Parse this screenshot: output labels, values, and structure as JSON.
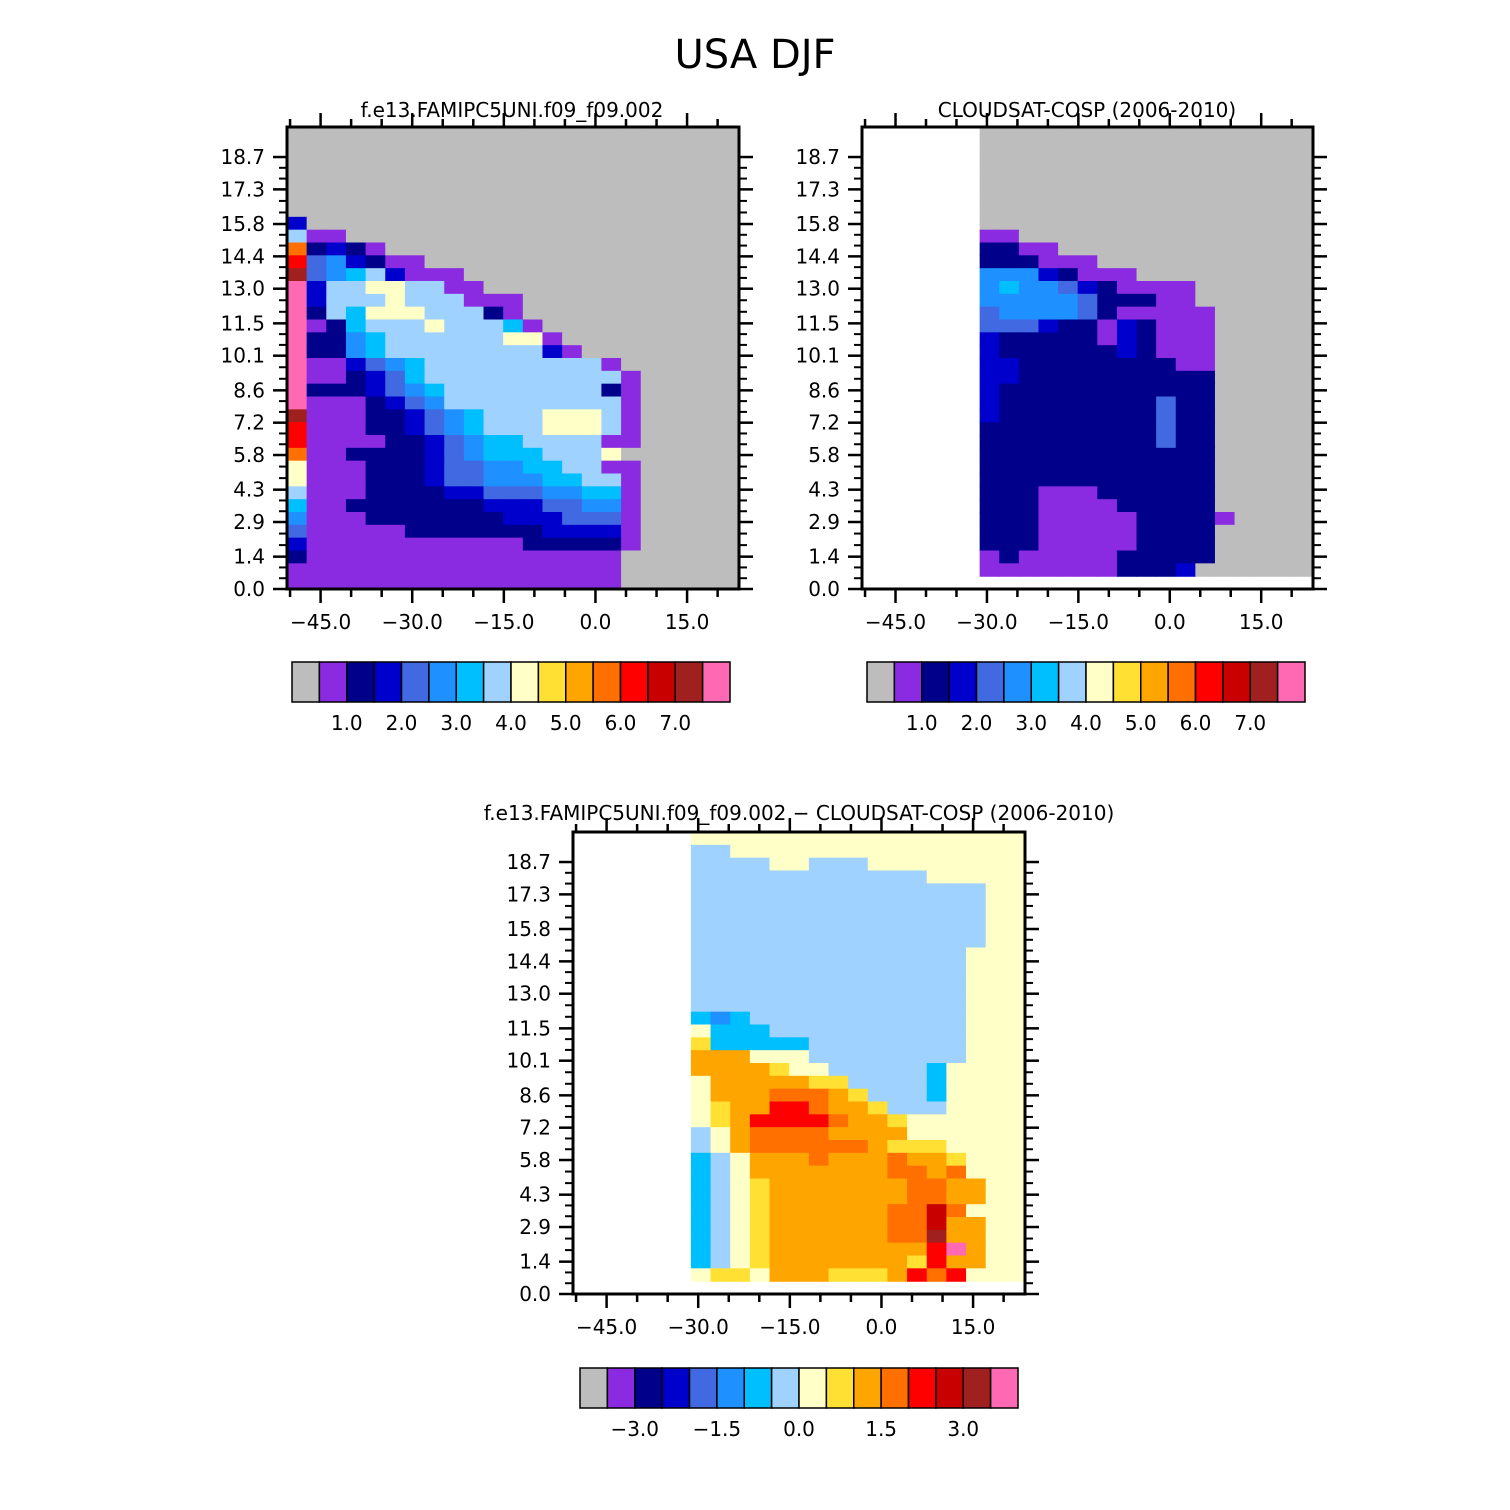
{
  "figure": {
    "title": "USA DJF"
  },
  "y_tick_labels": [
    "0.0",
    "1.4",
    "2.9",
    "4.3",
    "5.8",
    "7.2",
    "8.6",
    "10.1",
    "11.5",
    "13.0",
    "14.4",
    "15.8",
    "17.3",
    "18.7"
  ],
  "x_tick_labels": [
    "−45.0",
    "−30.0",
    "−15.0",
    "0.0",
    "15.0"
  ],
  "colors": {
    "missing": "#bdbdbd",
    "palette": [
      "#bdbdbd",
      "#8a2be2",
      "#00008b",
      "#0000cd",
      "#4169e1",
      "#1e90ff",
      "#00bfff",
      "#a0d2ff",
      "#ffffc8",
      "#ffe033",
      "#ffa500",
      "#ff7000",
      "#ff0000",
      "#c80000",
      "#a02020",
      "#ff69b4"
    ]
  },
  "chart_data": [
    {
      "type": "heatmap",
      "title": "f.e13.FAMIPC5UNI.f09_f09.002",
      "x_ticks": [
        -45,
        -30,
        -15,
        0,
        15
      ],
      "y_ticks": [
        0.0,
        1.4,
        2.9,
        4.3,
        5.8,
        7.2,
        8.6,
        10.1,
        11.5,
        13.0,
        14.4,
        15.8,
        17.3,
        18.7
      ],
      "colorbar_labels": [
        "1.0",
        "2.0",
        "3.0",
        "4.0",
        "5.0",
        "6.0",
        "7.0"
      ],
      "grid_rows": [
        "00000000000000000000000",
        "00000000000000000000000",
        "00000000000000000000000",
        "00000000000000000000000",
        "00000000000000000000000",
        "00000000000000000000000",
        "00000000000000000000000",
        "30000000000000000000000",
        "71100000000000000000000",
        "B23210000000000000000000",
        "C45321100000000000000000",
        "E45673111000000000000000",
        "F37788771100000000000000",
        "F37778777111000000000000",
        "F27688877721000000000000",
        "F12677787776100000000000",
        "F22567777778810000000000",
        "F22567777777731000000000",
        "F11345677777777710000000",
        "F11234677777777771000000",
        "F22234567777777721000000",
        "F11123457777777771000000",
        "E11122345677788871000000",
        "C11122345677788871000000",
        "C11112234566777711000000",
        "B11222234566677780000000",
        "811122234455667711000000",
        "811122234455566771000000",
        "711122223344455661000000",
        "611222222233344551000000",
        "511122222223334441000000",
        "411111222222233331000000",
        "311111111111222221000000",
        "211111111111111110000000",
        "111111111111111110000000",
        "111111111111111110000000"
      ]
    },
    {
      "type": "heatmap",
      "title": "CLOUDSAT-COSP (2006-2010)",
      "x_ticks": [
        -45,
        -30,
        -15,
        0,
        15
      ],
      "y_ticks": [
        0.0,
        1.4,
        2.9,
        4.3,
        5.8,
        7.2,
        8.6,
        10.1,
        11.5,
        13.0,
        14.4,
        15.8,
        17.3,
        18.7
      ],
      "colorbar_labels": [
        "1.0",
        "2.0",
        "3.0",
        "4.0",
        "5.0",
        "6.0",
        "7.0"
      ],
      "grid_rows": [
        "XXXXXX00000000000000000",
        "XXXXXX00000000000000000",
        "XXXXXX00000000000000000",
        "XXXXXX00000000000000000",
        "XXXXXX00000000000000000",
        "XXXXXX00000000000000000",
        "XXXXXX00000000000000000",
        "XXXXXX00000000000000000",
        "XXXXXX11000000000000000",
        "XXXXXX22110000000000000",
        "XXXXXX22211100000000000",
        "XXXXXX55532111000000000",
        "XXXXXX56554321111000000",
        "XXXXXX55555422211000000",
        "XXXXXX45555421111100000",
        "XXXXXX44432213211100000",
        "XXXXXX32222213211100000",
        "XXXXXX32222223211100000",
        "XXXXXX33222222221100000",
        "XXXXXX33222222222200000",
        "XXXXXX32222222222200000",
        "XXXXXX32222222242200000",
        "XXXXXX32222222242200000",
        "XXXXXX22222222242200000",
        "XXXXXX22222222242200000",
        "XXXXXX22222222222200000",
        "XXXXXX22222222222200000",
        "XXXXXX22222222222200000",
        "XXXXXX22211122222200000",
        "XXXXXX22211112222200000",
        "XXXXXX22211111222210000",
        "XXXXXX22211111222200000",
        "XXXXXX22211111222200000",
        "XXXXXX12111112222200000",
        "XXXXXX11111112223000000",
        "XXXXXXXXXXXXXXXXXXXXXXX"
      ]
    },
    {
      "type": "heatmap",
      "title": "f.e13.FAMIPC5UNI.f09_f09.002 − CLOUDSAT-COSP (2006-2010)",
      "x_ticks": [
        -45,
        -30,
        -15,
        0,
        15
      ],
      "y_ticks": [
        0.0,
        1.4,
        2.9,
        4.3,
        5.8,
        7.2,
        8.6,
        10.1,
        11.5,
        13.0,
        14.4,
        15.8,
        17.3,
        18.7
      ],
      "colorbar_labels": [
        "−3.0",
        "−1.5",
        "0.0",
        "1.5",
        "3.0"
      ],
      "grid_rows": [
        "XXXXXX88888888888888888",
        "XXXXXX77888888888888888",
        "XXXXXX77778877788888888",
        "XXXXXX77777777777788888",
        "XXXXXX77777777777777788",
        "XXXXXX77777777777777788",
        "XXXXXX77777777777777788",
        "XXXXXX77777777777777788",
        "XXXXXX77777777777777788",
        "XXXXXX77777777777777888",
        "XXXXXX77777777777777888",
        "XXXXXX77777777777777888",
        "XXXXXX77777777777777888",
        "XXXXXX77777777777777888",
        "XXXXXX65677777777777888",
        "XXXXXX86667777777777888",
        "XXXXXX96666677777777888",
        "XXXXXXAAA88877777777888",
        "XXXXXXAAAA9887777768888",
        "XXXXXX8AAAAA99777768888",
        "XXXXXX8AAABBBA977768888",
        "XXXXXX89AACCBAA97778888",
        "XXXXXX89ACCCCBAA9888888",
        "XXXXXX78ABBBBAAAA888888",
        "XXXXXX78ABBBBBBA9998888",
        "XXXXXX678AAABAAABAA9888",
        "XXXXXX678AAAAAAABBAB888",
        "XXXXXX6789AAAAAAABBAA888",
        "XXXXXX6789AAAAAAABBAA888",
        "XXXXXX6789AAAAAABBDB888",
        "XXXXXX6789AAAAAABBDAA888",
        "XXXXXX6789AAAAAABBEAA888",
        "XXXXXX6789AAAAAAAACFA888",
        "XXXXXX6789AAAAAAA9CAA888",
        "XXXXXX8998AAA999ACBC888",
        "XXXXXXXXXXXXXXXXXXXXXXX"
      ]
    }
  ]
}
